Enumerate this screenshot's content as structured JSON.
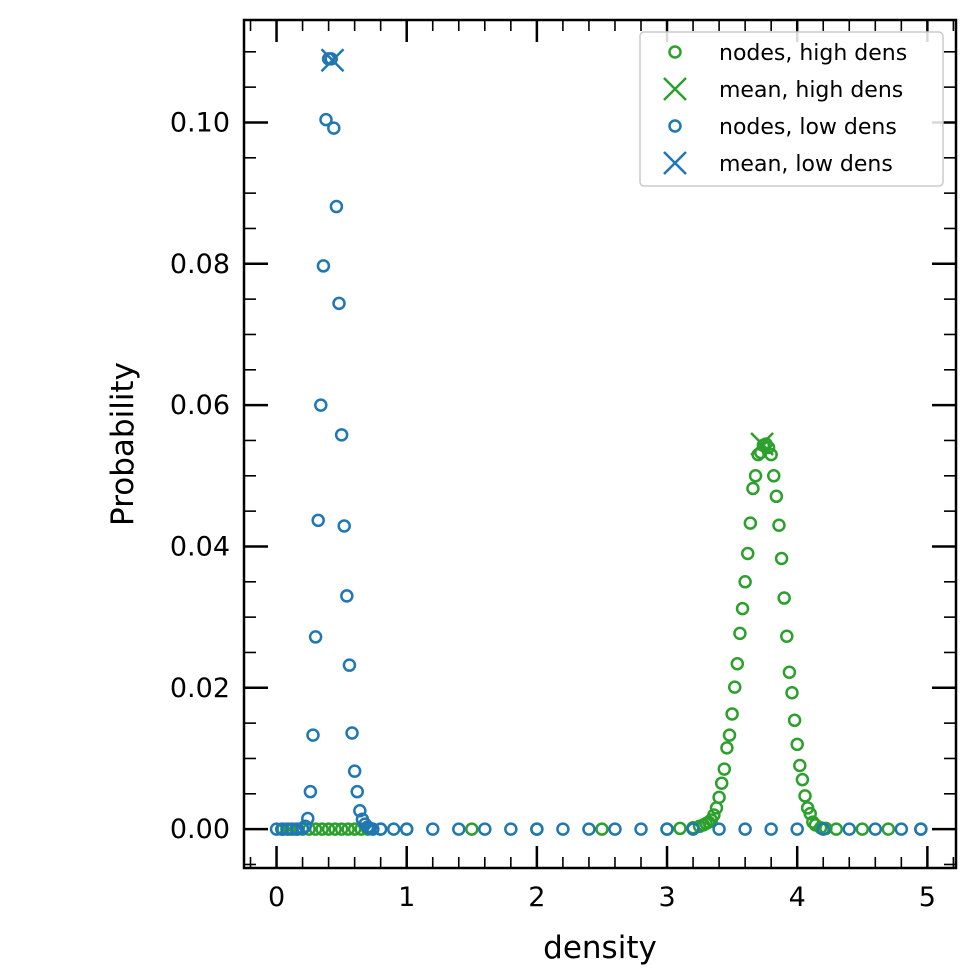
{
  "chart_data": {
    "type": "scatter",
    "xlabel": "density",
    "ylabel": "Probability",
    "xlim": [
      -0.25,
      5.22
    ],
    "ylim": [
      -0.0055,
      0.1145
    ],
    "x_ticks": [
      0,
      1,
      2,
      3,
      4,
      5
    ],
    "x_tick_labels": [
      "0",
      "1",
      "2",
      "3",
      "4",
      "5"
    ],
    "y_ticks": [
      0.0,
      0.02,
      0.04,
      0.06,
      0.08,
      0.1
    ],
    "y_tick_labels": [
      "0.00",
      "0.02",
      "0.04",
      "0.06",
      "0.08",
      "0.10"
    ],
    "grid": false,
    "legend_position": "top-right",
    "series": [
      {
        "name": "nodes, high dens",
        "color": "#2ca02c",
        "marker": "circle-open",
        "x": [
          0.05,
          0.1,
          0.15,
          0.2,
          0.25,
          0.3,
          0.35,
          0.4,
          0.45,
          0.5,
          0.55,
          0.6,
          0.65,
          0.7,
          0.8,
          1.0,
          1.5,
          2.0,
          2.5,
          3.0,
          3.1,
          3.2,
          3.25,
          3.28,
          3.3,
          3.32,
          3.34,
          3.36,
          3.38,
          3.4,
          3.42,
          3.44,
          3.46,
          3.48,
          3.5,
          3.52,
          3.54,
          3.56,
          3.58,
          3.6,
          3.62,
          3.64,
          3.66,
          3.68,
          3.7,
          3.72,
          3.74,
          3.76,
          3.78,
          3.8,
          3.82,
          3.84,
          3.86,
          3.88,
          3.9,
          3.92,
          3.94,
          3.96,
          3.98,
          4.0,
          4.02,
          4.04,
          4.06,
          4.08,
          4.1,
          4.12,
          4.14,
          4.18,
          4.22,
          4.3,
          4.5,
          4.7,
          4.95
        ],
        "y": [
          0,
          0,
          0,
          0,
          0,
          0,
          0,
          0,
          0,
          0,
          0,
          0,
          0,
          0,
          0,
          0,
          0,
          0,
          0,
          0,
          0.0001,
          0.0002,
          0.0004,
          0.0006,
          0.0008,
          0.001,
          0.0013,
          0.002,
          0.003,
          0.0045,
          0.0065,
          0.0085,
          0.0115,
          0.0133,
          0.0163,
          0.0201,
          0.0234,
          0.0277,
          0.0312,
          0.035,
          0.039,
          0.0433,
          0.0482,
          0.05,
          0.053,
          0.0533,
          0.0543,
          0.0545,
          0.054,
          0.053,
          0.05,
          0.0471,
          0.043,
          0.0383,
          0.0327,
          0.0273,
          0.0222,
          0.0193,
          0.0154,
          0.012,
          0.009,
          0.007,
          0.0047,
          0.003,
          0.0022,
          0.001,
          0.0006,
          0.0002,
          0.0001,
          0,
          0,
          0,
          0
        ]
      },
      {
        "name": "mean, high dens",
        "color": "#2ca02c",
        "marker": "x",
        "x": [
          3.73
        ],
        "y": [
          0.0545
        ]
      },
      {
        "name": "nodes, low dens",
        "color": "#1f77b4",
        "marker": "circle-open",
        "x": [
          0.0,
          0.04,
          0.08,
          0.12,
          0.16,
          0.2,
          0.22,
          0.24,
          0.26,
          0.28,
          0.3,
          0.32,
          0.34,
          0.36,
          0.38,
          0.4,
          0.42,
          0.44,
          0.46,
          0.48,
          0.5,
          0.52,
          0.54,
          0.56,
          0.58,
          0.6,
          0.62,
          0.64,
          0.66,
          0.68,
          0.7,
          0.72,
          0.74,
          0.8,
          0.9,
          1.0,
          1.2,
          1.4,
          1.6,
          1.8,
          2.0,
          2.2,
          2.4,
          2.6,
          2.8,
          3.0,
          3.2,
          3.4,
          3.6,
          3.8,
          4.0,
          4.2,
          4.4,
          4.6,
          4.8,
          4.95
        ],
        "y": [
          0,
          0,
          0,
          0,
          0,
          0.0001,
          0.0004,
          0.0015,
          0.0053,
          0.0133,
          0.0272,
          0.0437,
          0.06,
          0.0797,
          0.1004,
          0.109,
          0.109,
          0.0992,
          0.0881,
          0.0744,
          0.0558,
          0.0429,
          0.033,
          0.0232,
          0.0136,
          0.0082,
          0.0053,
          0.0026,
          0.0014,
          0.0007,
          0.0003,
          0.0001,
          0,
          0,
          0,
          0,
          0,
          0,
          0,
          0,
          0,
          0,
          0,
          0,
          0,
          0,
          0,
          0,
          0,
          0,
          0,
          0,
          0,
          0,
          0,
          0
        ]
      },
      {
        "name": "mean, low dens",
        "color": "#1f77b4",
        "marker": "x",
        "x": [
          0.43
        ],
        "y": [
          0.1088
        ]
      }
    ]
  }
}
